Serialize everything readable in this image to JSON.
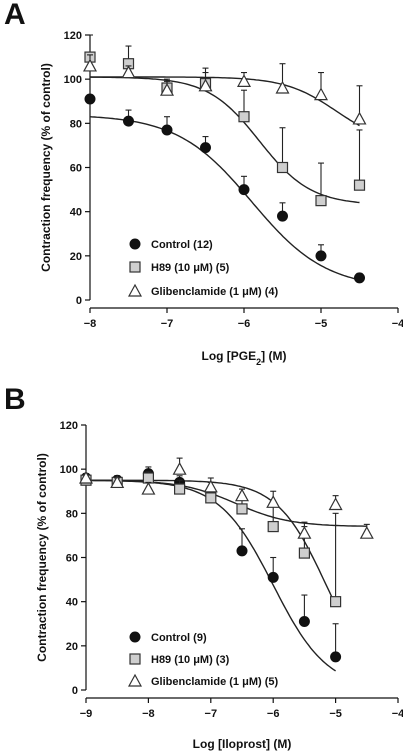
{
  "chart_data": [
    {
      "panel": "A",
      "type": "scatter",
      "xlabel": "Log [PGE",
      "xlabel_sub": "2",
      "xlabel_suffix": "] (M)",
      "ylabel": "Contraction frequency (% of control)",
      "xlim": [
        -8,
        -4
      ],
      "ylim": [
        0,
        120
      ],
      "xticks": [
        -8,
        -7,
        -6,
        -5,
        -4
      ],
      "yticks": [
        0,
        20,
        40,
        60,
        80,
        100,
        120
      ],
      "legend_position": "bottom-left",
      "series": [
        {
          "name": "Control (12)",
          "marker": "circle",
          "x": [
            -8,
            -7.5,
            -7,
            -6.5,
            -6,
            -5.5,
            -5,
            -4.5
          ],
          "y": [
            91,
            81,
            77,
            69,
            50,
            38,
            20,
            10
          ],
          "err": [
            0,
            5,
            6,
            5,
            6,
            6,
            5,
            2
          ],
          "fit": {
            "top": 84,
            "bottom": 5,
            "logEC50": -5.9,
            "hill": 0.9
          }
        },
        {
          "name": "H89 (10 μM) (5)",
          "marker": "square",
          "x": [
            -8,
            -7.5,
            -7,
            -6.5,
            -6,
            -5.5,
            -5,
            -4.5
          ],
          "y": [
            110,
            107,
            96,
            98,
            83,
            60,
            45,
            52
          ],
          "err": [
            10,
            8,
            4,
            5,
            12,
            18,
            17,
            25
          ],
          "fit": {
            "top": 101,
            "bottom": 43,
            "logEC50": -5.8,
            "hill": 1.3
          }
        },
        {
          "name": "Glibenclamide (1 μM) (4)",
          "marker": "triangle",
          "x": [
            -8,
            -7.5,
            -7,
            -6.5,
            -6,
            -5.5,
            -5,
            -4.5
          ],
          "y": [
            106,
            103,
            95,
            97,
            99,
            96,
            93,
            82
          ],
          "err": [
            5,
            3,
            4,
            8,
            4,
            11,
            10,
            15
          ],
          "fit": {
            "top": 101,
            "bottom": 70,
            "logEC50": -4.8,
            "hill": 1.3
          }
        }
      ]
    },
    {
      "panel": "B",
      "type": "scatter",
      "xlabel": "Log [Iloprost] (M)",
      "xlabel_sub": "",
      "xlabel_suffix": "",
      "ylabel": "Contraction frequency (% of control)",
      "xlim": [
        -9,
        -4
      ],
      "ylim": [
        0,
        120
      ],
      "xticks": [
        -9,
        -8,
        -7,
        -6,
        -5,
        -4
      ],
      "yticks": [
        0,
        20,
        40,
        60,
        80,
        100,
        120
      ],
      "legend_position": "bottom-left",
      "series": [
        {
          "name": "Control (9)",
          "marker": "circle",
          "x": [
            -9,
            -8.5,
            -8,
            -7.5,
            -7,
            -6.5,
            -6,
            -5.5,
            -5
          ],
          "y": [
            96,
            95,
            98,
            94,
            89,
            63,
            51,
            31,
            15
          ],
          "err": [
            2,
            2,
            3,
            3,
            5,
            10,
            9,
            12,
            15
          ],
          "fit": {
            "top": 95,
            "bottom": 0,
            "logEC50": -6.0,
            "hill": 1.0
          }
        },
        {
          "name": "H89 (10 μM) (3)",
          "marker": "square",
          "x": [
            -9,
            -8.5,
            -8,
            -7.5,
            -7,
            -6.5,
            -6,
            -5.5,
            -5
          ],
          "y": [
            95,
            94,
            96,
            91,
            87,
            82,
            74,
            62,
            40
          ],
          "err": [
            2,
            2,
            3,
            4,
            4,
            9,
            11,
            12,
            40
          ],
          "fit": {
            "top": 95,
            "bottom": 0,
            "logEC50": -5.15,
            "hill": 1.1
          }
        },
        {
          "name": "Glibenclamide (1 μM) (5)",
          "marker": "triangle",
          "x": [
            -9,
            -8.5,
            -8,
            -7.5,
            -7,
            -6.5,
            -6,
            -5.5,
            -5,
            -4.5
          ],
          "y": [
            96,
            94,
            91,
            100,
            92,
            88,
            85,
            71,
            84,
            71
          ],
          "err": [
            2,
            2,
            3,
            5,
            4,
            3,
            5,
            5,
            4,
            4
          ],
          "fit": {
            "top": 95,
            "bottom": 74,
            "logEC50": -6.6,
            "hill": 1.0
          }
        }
      ]
    }
  ]
}
